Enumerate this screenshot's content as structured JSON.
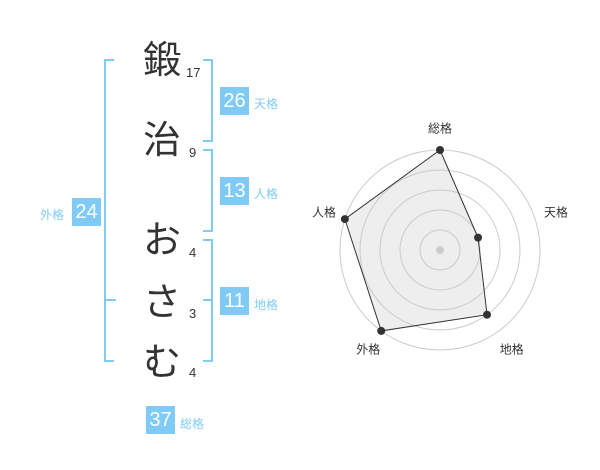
{
  "name_chars": [
    {
      "char": "鍛",
      "strokes": "17"
    },
    {
      "char": "治",
      "strokes": "9"
    },
    {
      "char": "お",
      "strokes": "4"
    },
    {
      "char": "さ",
      "strokes": "3"
    },
    {
      "char": "む",
      "strokes": "4"
    }
  ],
  "kaku": {
    "tenkaku": {
      "value": "26",
      "label": "天格"
    },
    "jinkaku": {
      "value": "13",
      "label": "人格"
    },
    "chikaku": {
      "value": "11",
      "label": "地格"
    },
    "gaikaku": {
      "value": "24",
      "label": "外格"
    },
    "soukaku": {
      "value": "37",
      "label": "総格"
    }
  },
  "accent_color": "#7fcbf5",
  "chart_data": {
    "type": "radar",
    "axes": [
      "総格",
      "天格",
      "地格",
      "外格",
      "人格"
    ],
    "values": [
      5,
      2,
      4,
      5,
      5
    ],
    "max": 5,
    "levels": 5
  }
}
